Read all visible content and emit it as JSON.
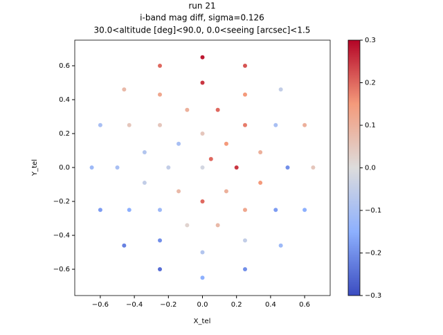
{
  "chart_data": {
    "type": "scatter",
    "title_lines": [
      "run 21",
      "i-band mag diff,  sigma=0.126",
      "30.0<altitude [deg]<90.0, 0.0<seeing [arcsec]<1.5"
    ],
    "x_label": "X_tel",
    "y_label": "Y_tel",
    "xlim": [
      -0.75,
      0.75
    ],
    "ylim": [
      -0.755,
      0.751
    ],
    "xticks": [
      {
        "value": -0.6,
        "label": "−0.6"
      },
      {
        "value": -0.4,
        "label": "−0.4"
      },
      {
        "value": -0.2,
        "label": "−0.2"
      },
      {
        "value": 0,
        "label": "0.0"
      },
      {
        "value": 0.2,
        "label": "0.2"
      },
      {
        "value": 0.4,
        "label": "0.4"
      },
      {
        "value": 0.6,
        "label": "0.6"
      }
    ],
    "yticks": [
      {
        "value": -0.6,
        "label": "−0.6"
      },
      {
        "value": -0.4,
        "label": "−0.4"
      },
      {
        "value": -0.2,
        "label": "−0.2"
      },
      {
        "value": 0,
        "label": "0.0"
      },
      {
        "value": 0.2,
        "label": "0.2"
      },
      {
        "value": 0.4,
        "label": "0.4"
      },
      {
        "value": 0.6,
        "label": "0.6"
      }
    ],
    "clim": [
      -0.3,
      0.3
    ],
    "cticks": [
      {
        "value": -0.3,
        "label": "−0.3"
      },
      {
        "value": -0.2,
        "label": "−0.2"
      },
      {
        "value": -0.1,
        "label": "−0.1"
      },
      {
        "value": 0,
        "label": "0.0"
      },
      {
        "value": 0.1,
        "label": "0.1"
      },
      {
        "value": 0.2,
        "label": "0.2"
      },
      {
        "value": 0.3,
        "label": "0.3"
      }
    ],
    "colormap": [
      "#3b4cc0",
      "#8db0fe",
      "#dddcdc",
      "#f49a7b",
      "#b40426"
    ],
    "series": [
      {
        "x": [
          0.65,
          0.6,
          0.46,
          0.25,
          0,
          -0.25,
          -0.46,
          -0.6,
          -0.65,
          -0.6,
          -0.46,
          -0.25,
          0,
          0.25,
          0.46,
          0.6,
          0.5,
          0.43,
          0.25,
          0,
          -0.25,
          -0.43,
          -0.5,
          -0.43,
          -0.25,
          0,
          0.25,
          0.43,
          0.34,
          0.25,
          0.09,
          -0.09,
          -0.25,
          -0.34,
          -0.34,
          -0.25,
          -0.09,
          0.09,
          0.25,
          0.34,
          0.2,
          0.14,
          0,
          -0.14,
          -0.2,
          -0.14,
          0,
          0.14,
          0,
          0.05
        ],
        "y": [
          0,
          0.25,
          0.46,
          0.6,
          0.65,
          0.6,
          0.46,
          0.25,
          0,
          -0.25,
          -0.46,
          -0.6,
          -0.65,
          -0.6,
          -0.46,
          -0.25,
          0,
          0.25,
          0.43,
          0.5,
          0.43,
          0.25,
          0,
          -0.25,
          -0.43,
          -0.5,
          -0.43,
          -0.25,
          0.09,
          0.25,
          0.34,
          0.34,
          0.25,
          0.09,
          -0.09,
          -0.25,
          -0.34,
          -0.34,
          -0.25,
          -0.09,
          0,
          0.14,
          0.2,
          0.14,
          0,
          -0.14,
          -0.2,
          -0.14,
          0,
          0.05
        ],
        "c": [
          0.05,
          0.1,
          -0.05,
          0.22,
          0.28,
          0.2,
          0.08,
          -0.1,
          -0.12,
          -0.18,
          -0.22,
          -0.25,
          -0.15,
          -0.2,
          -0.12,
          -0.15,
          -0.2,
          -0.1,
          0.15,
          0.25,
          0.12,
          0.05,
          -0.1,
          -0.15,
          -0.2,
          -0.08,
          -0.05,
          -0.18,
          0.1,
          0.18,
          0.2,
          0.1,
          0.05,
          -0.08,
          -0.05,
          -0.12,
          0.02,
          0.08,
          0.12,
          0.15,
          0.25,
          0.15,
          0.05,
          -0.1,
          -0.05,
          0.08,
          0.2,
          0.1,
          -0.02,
          0.2
        ]
      }
    ]
  }
}
